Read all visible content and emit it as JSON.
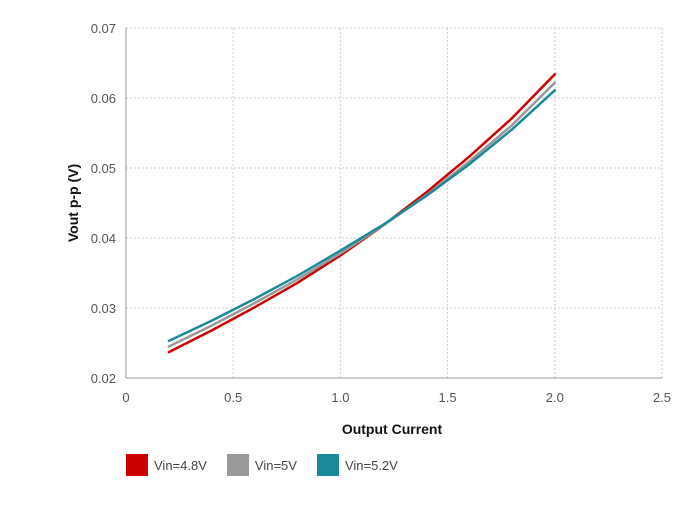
{
  "chart_data": {
    "type": "line",
    "title": "",
    "xlabel": "Output Current",
    "ylabel": "Vout p-p (V)",
    "xlim": [
      0,
      2.5
    ],
    "ylim": [
      0.02,
      0.07
    ],
    "x_ticks": [
      "0",
      "0.5",
      "1.0",
      "1.5",
      "2.0",
      "2.5"
    ],
    "y_ticks": [
      "0.02",
      "0.03",
      "0.04",
      "0.05",
      "0.06",
      "0.07"
    ],
    "grid": true,
    "legend_position": "bottom-left",
    "series": [
      {
        "name": "Vin=4.8V",
        "color": "#cc0000",
        "x": [
          0.2,
          0.4,
          0.6,
          0.8,
          1.0,
          1.2,
          1.4,
          1.6,
          1.8,
          2.0
        ],
        "y": [
          0.0237,
          0.0268,
          0.0301,
          0.0336,
          0.0375,
          0.0418,
          0.0465,
          0.0516,
          0.0571,
          0.0634
        ]
      },
      {
        "name": "Vin=5V",
        "color": "#999999",
        "x": [
          0.2,
          0.4,
          0.6,
          0.8,
          1.0,
          1.2,
          1.4,
          1.6,
          1.8,
          2.0
        ],
        "y": [
          0.0245,
          0.0275,
          0.0307,
          0.0341,
          0.0378,
          0.0418,
          0.0461,
          0.0509,
          0.0561,
          0.0622
        ]
      },
      {
        "name": "Vin=5.2V",
        "color": "#1a8a9a",
        "x": [
          0.2,
          0.4,
          0.6,
          0.8,
          1.0,
          1.2,
          1.4,
          1.6,
          1.8,
          2.0
        ],
        "y": [
          0.0253,
          0.0282,
          0.0313,
          0.0346,
          0.0382,
          0.0419,
          0.046,
          0.0505,
          0.0555,
          0.0611
        ]
      }
    ]
  }
}
